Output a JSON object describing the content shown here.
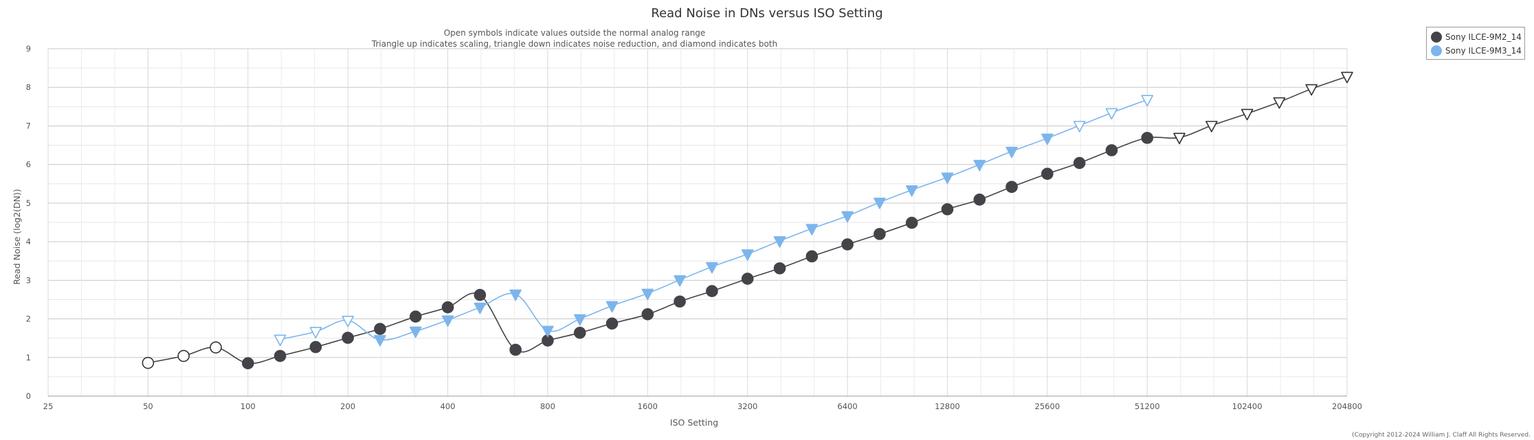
{
  "chart_data": {
    "type": "line",
    "title": "Read Noise in DNs versus ISO Setting",
    "subtitle_lines": [
      "Open symbols indicate values outside the normal analog range",
      "Triangle up indicates scaling, triangle down indicates noise reduction, and diamond indicates both"
    ],
    "xlabel": "ISO Setting",
    "ylabel": "Read Noise (log2(DN))",
    "x_scale": "log2",
    "x_ticks": [
      25,
      50,
      100,
      200,
      400,
      800,
      1600,
      3200,
      6400,
      12800,
      25600,
      51200,
      102400,
      204800
    ],
    "x_tick_labels": [
      "25",
      "50",
      "100",
      "200",
      "400",
      "800",
      "1600",
      "3200",
      "6400",
      "12800",
      "25600",
      "51200",
      "102400",
      "204800"
    ],
    "xlim": [
      25,
      204800
    ],
    "ylim": [
      0,
      9
    ],
    "y_ticks": [
      0,
      1,
      2,
      3,
      4,
      5,
      6,
      7,
      8,
      9
    ],
    "grid": true,
    "legend_position": "top-right",
    "copyright": "(Copyright 2012-2024 William J. Claff All Rights Reserved.",
    "series": [
      {
        "name": "Sony ILCE-9M2_14",
        "color": "#434348",
        "points": [
          {
            "x": 50,
            "y": 0.86,
            "marker": "circle",
            "open": true
          },
          {
            "x": 64,
            "y": 1.04,
            "marker": "circle",
            "open": true
          },
          {
            "x": 80,
            "y": 1.26,
            "marker": "circle",
            "open": true
          },
          {
            "x": 100,
            "y": 0.85,
            "marker": "circle",
            "open": false
          },
          {
            "x": 125,
            "y": 1.04,
            "marker": "circle",
            "open": false
          },
          {
            "x": 160,
            "y": 1.27,
            "marker": "circle",
            "open": false
          },
          {
            "x": 200,
            "y": 1.51,
            "marker": "circle",
            "open": false
          },
          {
            "x": 250,
            "y": 1.74,
            "marker": "circle",
            "open": false
          },
          {
            "x": 320,
            "y": 2.06,
            "marker": "circle",
            "open": false
          },
          {
            "x": 400,
            "y": 2.3,
            "marker": "circle",
            "open": false
          },
          {
            "x": 500,
            "y": 2.62,
            "marker": "circle",
            "open": false
          },
          {
            "x": 640,
            "y": 1.2,
            "marker": "circle",
            "open": false
          },
          {
            "x": 800,
            "y": 1.44,
            "marker": "circle",
            "open": false
          },
          {
            "x": 1000,
            "y": 1.64,
            "marker": "circle",
            "open": false
          },
          {
            "x": 1250,
            "y": 1.88,
            "marker": "circle",
            "open": false
          },
          {
            "x": 1600,
            "y": 2.12,
            "marker": "circle",
            "open": false
          },
          {
            "x": 2000,
            "y": 2.45,
            "marker": "circle",
            "open": false
          },
          {
            "x": 2500,
            "y": 2.72,
            "marker": "circle",
            "open": false
          },
          {
            "x": 3200,
            "y": 3.04,
            "marker": "circle",
            "open": false
          },
          {
            "x": 4000,
            "y": 3.31,
            "marker": "circle",
            "open": false
          },
          {
            "x": 5000,
            "y": 3.62,
            "marker": "circle",
            "open": false
          },
          {
            "x": 6400,
            "y": 3.93,
            "marker": "circle",
            "open": false
          },
          {
            "x": 8000,
            "y": 4.2,
            "marker": "circle",
            "open": false
          },
          {
            "x": 10000,
            "y": 4.49,
            "marker": "circle",
            "open": false
          },
          {
            "x": 12800,
            "y": 4.84,
            "marker": "circle",
            "open": false
          },
          {
            "x": 16000,
            "y": 5.09,
            "marker": "circle",
            "open": false
          },
          {
            "x": 20000,
            "y": 5.42,
            "marker": "circle",
            "open": false
          },
          {
            "x": 25600,
            "y": 5.76,
            "marker": "circle",
            "open": false
          },
          {
            "x": 32000,
            "y": 6.04,
            "marker": "circle",
            "open": false
          },
          {
            "x": 40000,
            "y": 6.37,
            "marker": "circle",
            "open": false
          },
          {
            "x": 51200,
            "y": 6.69,
            "marker": "circle",
            "open": false
          },
          {
            "x": 64000,
            "y": 6.7,
            "marker": "triangle-down",
            "open": true
          },
          {
            "x": 80000,
            "y": 7.01,
            "marker": "triangle-down",
            "open": true
          },
          {
            "x": 102400,
            "y": 7.32,
            "marker": "triangle-down",
            "open": true
          },
          {
            "x": 128000,
            "y": 7.62,
            "marker": "triangle-down",
            "open": true
          },
          {
            "x": 160000,
            "y": 7.96,
            "marker": "triangle-down",
            "open": true
          },
          {
            "x": 204800,
            "y": 8.28,
            "marker": "triangle-down",
            "open": true
          }
        ]
      },
      {
        "name": "Sony ILCE-9M3_14",
        "color": "#7cb5ec",
        "points": [
          {
            "x": 125,
            "y": 1.47,
            "marker": "triangle-down",
            "open": true
          },
          {
            "x": 160,
            "y": 1.67,
            "marker": "triangle-down",
            "open": true
          },
          {
            "x": 200,
            "y": 1.96,
            "marker": "triangle-down",
            "open": true
          },
          {
            "x": 250,
            "y": 1.46,
            "marker": "triangle-down",
            "open": false
          },
          {
            "x": 320,
            "y": 1.68,
            "marker": "triangle-down",
            "open": false
          },
          {
            "x": 400,
            "y": 1.97,
            "marker": "triangle-down",
            "open": false
          },
          {
            "x": 500,
            "y": 2.3,
            "marker": "triangle-down",
            "open": false
          },
          {
            "x": 640,
            "y": 2.64,
            "marker": "triangle-down",
            "open": false
          },
          {
            "x": 800,
            "y": 1.7,
            "marker": "triangle-down",
            "open": false
          },
          {
            "x": 1000,
            "y": 2.0,
            "marker": "triangle-down",
            "open": false
          },
          {
            "x": 1250,
            "y": 2.34,
            "marker": "triangle-down",
            "open": false
          },
          {
            "x": 1600,
            "y": 2.66,
            "marker": "triangle-down",
            "open": false
          },
          {
            "x": 2000,
            "y": 3.01,
            "marker": "triangle-down",
            "open": false
          },
          {
            "x": 2500,
            "y": 3.35,
            "marker": "triangle-down",
            "open": false
          },
          {
            "x": 3200,
            "y": 3.68,
            "marker": "triangle-down",
            "open": false
          },
          {
            "x": 4000,
            "y": 4.02,
            "marker": "triangle-down",
            "open": false
          },
          {
            "x": 5000,
            "y": 4.34,
            "marker": "triangle-down",
            "open": false
          },
          {
            "x": 6400,
            "y": 4.67,
            "marker": "triangle-down",
            "open": false
          },
          {
            "x": 8000,
            "y": 5.02,
            "marker": "triangle-down",
            "open": false
          },
          {
            "x": 10000,
            "y": 5.34,
            "marker": "triangle-down",
            "open": false
          },
          {
            "x": 12800,
            "y": 5.67,
            "marker": "triangle-down",
            "open": false
          },
          {
            "x": 16000,
            "y": 6.0,
            "marker": "triangle-down",
            "open": false
          },
          {
            "x": 20000,
            "y": 6.34,
            "marker": "triangle-down",
            "open": false
          },
          {
            "x": 25600,
            "y": 6.68,
            "marker": "triangle-down",
            "open": false
          },
          {
            "x": 32000,
            "y": 7.01,
            "marker": "triangle-down",
            "open": true
          },
          {
            "x": 40000,
            "y": 7.34,
            "marker": "triangle-down",
            "open": true
          },
          {
            "x": 51200,
            "y": 7.68,
            "marker": "triangle-down",
            "open": true
          }
        ]
      }
    ]
  }
}
